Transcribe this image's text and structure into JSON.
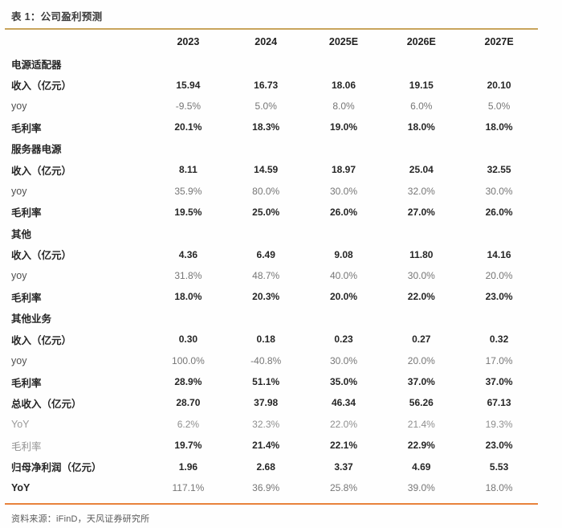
{
  "page": {
    "title": "表 1：公司盈利预测",
    "source": "资料来源：iFinD，天风证券研究所"
  },
  "colors": {
    "title_rule": "#C9A45C",
    "footer_rule": "#E8823C",
    "bold_text": "#262626",
    "gray_text": "#767676"
  },
  "chart_data": {
    "type": "table",
    "columns": [
      "2023",
      "2024",
      "2025E",
      "2026E",
      "2027E"
    ],
    "rows": [
      {
        "label": "电源适配器",
        "style": "section",
        "values": [
          "",
          "",
          "",
          "",
          ""
        ]
      },
      {
        "label": "收入（亿元）",
        "style": "bold",
        "values": [
          "15.94",
          "16.73",
          "18.06",
          "19.15",
          "20.10"
        ]
      },
      {
        "label": "yoy",
        "style": "gray",
        "values": [
          "-9.5%",
          "5.0%",
          "8.0%",
          "6.0%",
          "5.0%"
        ]
      },
      {
        "label": "毛利率",
        "style": "bold",
        "values": [
          "20.1%",
          "18.3%",
          "19.0%",
          "18.0%",
          "18.0%"
        ]
      },
      {
        "label": "服务器电源",
        "style": "section",
        "values": [
          "",
          "",
          "",
          "",
          ""
        ]
      },
      {
        "label": "收入（亿元）",
        "style": "bold",
        "values": [
          "8.11",
          "14.59",
          "18.97",
          "25.04",
          "32.55"
        ]
      },
      {
        "label": "yoy",
        "style": "gray",
        "values": [
          "35.9%",
          "80.0%",
          "30.0%",
          "32.0%",
          "30.0%"
        ]
      },
      {
        "label": "毛利率",
        "style": "bold",
        "values": [
          "19.5%",
          "25.0%",
          "26.0%",
          "27.0%",
          "26.0%"
        ]
      },
      {
        "label": "其他",
        "style": "section",
        "values": [
          "",
          "",
          "",
          "",
          ""
        ]
      },
      {
        "label": "收入（亿元）",
        "style": "bold",
        "values": [
          "4.36",
          "6.49",
          "9.08",
          "11.80",
          "14.16"
        ]
      },
      {
        "label": "yoy",
        "style": "gray",
        "values": [
          "31.8%",
          "48.7%",
          "40.0%",
          "30.0%",
          "20.0%"
        ]
      },
      {
        "label": "毛利率",
        "style": "bold",
        "values": [
          "18.0%",
          "20.3%",
          "20.0%",
          "22.0%",
          "23.0%"
        ]
      },
      {
        "label": "其他业务",
        "style": "section",
        "values": [
          "",
          "",
          "",
          "",
          ""
        ]
      },
      {
        "label": "收入（亿元）",
        "style": "bold",
        "values": [
          "0.30",
          "0.18",
          "0.23",
          "0.27",
          "0.32"
        ]
      },
      {
        "label": "yoy",
        "style": "gray",
        "values": [
          "100.0%",
          "-40.8%",
          "30.0%",
          "20.0%",
          "17.0%"
        ]
      },
      {
        "label": "毛利率",
        "style": "bold",
        "values": [
          "28.9%",
          "51.1%",
          "35.0%",
          "37.0%",
          "37.0%"
        ]
      },
      {
        "label": "总收入（亿元）",
        "style": "bold",
        "values": [
          "28.70",
          "37.98",
          "46.34",
          "56.26",
          "67.13"
        ]
      },
      {
        "label": "YoY",
        "style": "gray-light",
        "values": [
          "6.2%",
          "32.3%",
          "22.0%",
          "21.4%",
          "19.3%"
        ]
      },
      {
        "label": "毛利率",
        "style": "gray-label-bold-values",
        "values": [
          "19.7%",
          "21.4%",
          "22.1%",
          "22.9%",
          "23.0%"
        ]
      },
      {
        "label": "归母净利润（亿元）",
        "style": "bold",
        "values": [
          "1.96",
          "2.68",
          "3.37",
          "4.69",
          "5.53"
        ]
      },
      {
        "label": "YoY",
        "style": "bold-label-gray-values",
        "values": [
          "117.1%",
          "36.9%",
          "25.8%",
          "39.0%",
          "18.0%"
        ]
      }
    ]
  }
}
